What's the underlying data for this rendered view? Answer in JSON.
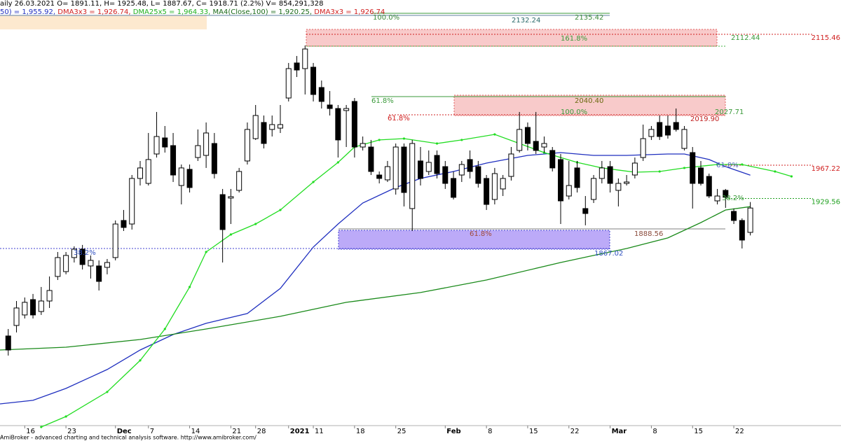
{
  "header": {
    "line1": "aily 26.03.2021 O= 1891.11, H= 1925.48, L= 1887.67, C= 1918.71 (2.2%) V= 854,291,328",
    "line2": [
      {
        "text": "50) = 1,955.92, ",
        "color": "#1f2fbf"
      },
      {
        "text": "DMA3x3 = 1,926.74, ",
        "color": "#d02020"
      },
      {
        "text": "DMA25x5 = 1,964.33, ",
        "color": "#20b020"
      },
      {
        "text": "MA4(Close,100) = 1,920.25, ",
        "color": "#1a6a1a"
      },
      {
        "text": "DMA3x3 = 1,926.74",
        "color": "#d02020"
      }
    ]
  },
  "footer": "AmiBroker - advanced charting and technical analysis software. http://www.amibroker.com/",
  "chart_data": {
    "type": "candlestick",
    "categories": [
      null,
      null,
      "16",
      null,
      null,
      null,
      null,
      "23",
      null,
      null,
      null,
      null,
      null,
      "Dec",
      null,
      null,
      null,
      "7",
      null,
      null,
      null,
      null,
      "14",
      null,
      null,
      null,
      null,
      "21",
      null,
      null,
      "28",
      null,
      null,
      null,
      "2021",
      null,
      null,
      "11",
      null,
      null,
      null,
      null,
      "18",
      null,
      null,
      null,
      null,
      "25",
      null,
      null,
      null,
      null,
      null,
      "Feb",
      null,
      null,
      null,
      null,
      "8",
      null,
      null,
      null,
      null,
      "15",
      null,
      null,
      null,
      null,
      "22",
      null,
      null,
      null,
      null,
      "Mar",
      null,
      null,
      null,
      null,
      "8",
      null,
      null,
      null,
      null,
      "15",
      null,
      null,
      null,
      null,
      "22",
      null,
      null
    ],
    "open": [
      1773.8,
      1785.7,
      1797.6,
      1815.0,
      1801.5,
      1813.4,
      1841.2,
      1846.7,
      1862.6,
      1872.1,
      1853.1,
      1853.1,
      1851.5,
      1862.6,
      1904.6,
      1900.6,
      1952.2,
      1946.6,
      1979.9,
      1998.1,
      1989.4,
      1944.2,
      1962.5,
      1975.9,
      1978.3,
      1991.8,
      1933.9,
      1930.0,
      1938.7,
      1972.0,
      1997.3,
      2015.6,
      2007.7,
      2009.2,
      2043.3,
      2083.0,
      2076.6,
      2078.2,
      2055.2,
      2035.4,
      2031.4,
      2029.1,
      2039.4,
      1987.8,
      1987.8,
      1956.1,
      1950.6,
      1940.3,
      1987.8,
      1918.1,
      1972.0,
      1960.1,
      1978.3,
      1965.6,
      1952.2,
      1956.1,
      1973.6,
      1965.6,
      1952.2,
      1928.4,
      1940.3,
      1954.5,
      1983.9,
      2010.0,
      1994.2,
      1987.8,
      1983.9,
      1973.6,
      1932.3,
      1964.1,
      1918.1,
      1928.4,
      1952.2,
      1965.6,
      1938.7,
      1946.6,
      1956.1,
      1975.9,
      1999.7,
      2015.6,
      2011.6,
      2015.6,
      1986.2,
      1981.5,
      1964.1,
      1954.5,
      1926.8,
      1938.7,
      1914.9,
      1904.6,
      1891.11
    ],
    "high": [
      1781.7,
      1813.4,
      1817.4,
      1821.4,
      1829.3,
      1841.2,
      1868.9,
      1868.9,
      1875.3,
      1876.9,
      1865.0,
      1859.4,
      1861.0,
      1904.6,
      1916.5,
      1956.1,
      1972.0,
      2003.7,
      2027.5,
      2011.6,
      2003.7,
      1968.0,
      1968.0,
      2007.7,
      2015.6,
      2003.7,
      1940.3,
      1940.3,
      1964.1,
      2015.6,
      2035.4,
      2023.5,
      2023.5,
      2035.4,
      2083.0,
      2090.9,
      2102.8,
      2083.0,
      2063.1,
      2051.2,
      2035.4,
      2035.4,
      2043.3,
      1999.7,
      1995.8,
      1960.1,
      1972.0,
      1991.8,
      1991.8,
      1995.8,
      1987.8,
      1983.9,
      1983.9,
      1972.0,
      1960.1,
      1972.0,
      1983.9,
      1972.0,
      1956.1,
      1964.1,
      1956.1,
      1987.8,
      2027.5,
      2015.6,
      2027.5,
      1999.7,
      1987.8,
      1979.9,
      1972.0,
      1972.0,
      1932.3,
      1956.1,
      1972.0,
      1972.0,
      1952.2,
      1956.1,
      1975.9,
      2013.2,
      2011.6,
      2023.5,
      2023.5,
      2031.4,
      2011.6,
      1987.8,
      1972.0,
      1957.7,
      1940.3,
      1940.3,
      1918.1,
      1907.0,
      1925.48
    ],
    "low": [
      1751.6,
      1777.8,
      1793.6,
      1793.6,
      1797.6,
      1805.5,
      1837.2,
      1843.6,
      1857.0,
      1849.1,
      1838.8,
      1825.3,
      1843.6,
      1859.4,
      1892.7,
      1894.3,
      1944.2,
      1944.2,
      1975.9,
      1981.5,
      1948.2,
      1922.8,
      1936.3,
      1972.0,
      1964.1,
      1952.2,
      1857.0,
      1900.6,
      1936.3,
      1968.0,
      1995.8,
      1986.2,
      1999.7,
      2003.7,
      2039.4,
      2067.1,
      2047.3,
      2039.4,
      2031.4,
      2023.5,
      1975.9,
      1987.8,
      1975.9,
      1983.9,
      1956.1,
      1946.6,
      1948.2,
      1933.9,
      1920.5,
      1892.7,
      1944.2,
      1956.1,
      1952.2,
      1940.3,
      1928.4,
      1948.2,
      1952.2,
      1941.9,
      1916.5,
      1922.8,
      1932.3,
      1949.8,
      1981.5,
      1983.9,
      1979.9,
      1981.5,
      1960.1,
      1900.6,
      1928.4,
      1936.3,
      1899.1,
      1924.4,
      1946.6,
      1936.3,
      1920.5,
      1944.2,
      1952.2,
      1972.0,
      1995.8,
      1995.8,
      1997.3,
      2005.3,
      1983.9,
      1918.1,
      1944.2,
      1930.0,
      1922.8,
      1918.9,
      1900.6,
      1872.9,
      1887.67
    ],
    "close": [
      1757.9,
      1805.5,
      1811.9,
      1797.6,
      1813.4,
      1825.3,
      1862.6,
      1865.0,
      1872.1,
      1854.7,
      1859.4,
      1835.6,
      1857.0,
      1900.6,
      1896.7,
      1952.2,
      1964.1,
      1973.6,
      1999.7,
      1987.8,
      1956.1,
      1964.1,
      1941.9,
      1989.4,
      2003.7,
      1957.7,
      1894.3,
      1931.6,
      1960.1,
      2007.7,
      2023.5,
      1991.8,
      2013.2,
      2013.2,
      2076.6,
      2075.0,
      2098.8,
      2047.3,
      2039.4,
      2031.4,
      1995.8,
      2031.4,
      1987.8,
      1991.8,
      1960.1,
      1952.2,
      1965.6,
      1987.8,
      1936.3,
      1991.8,
      1952.2,
      1970.4,
      1957.7,
      1946.6,
      1930.8,
      1968.0,
      1960.1,
      1946.6,
      1922.8,
      1957.7,
      1952.2,
      1979.9,
      2007.7,
      1991.8,
      1983.9,
      1991.8,
      1964.1,
      1926.8,
      1944.2,
      1941.9,
      1912.5,
      1952.2,
      1964.1,
      1946.6,
      1946.6,
      1948.2,
      1969.6,
      1997.3,
      2007.7,
      1999.7,
      2001.3,
      2007.7,
      2007.7,
      1946.6,
      1946.6,
      1932.3,
      1932.3,
      1930.8,
      1904.6,
      1882.4,
      1918.71
    ],
    "up_color": "#ffffff",
    "down_color": "#000000",
    "xlim": [
      -1,
      97.6
    ],
    "ylim": [
      1670.7,
      2154.3
    ],
    "overlays": [
      {
        "color": "#1f2fbf",
        "x": [
          -1,
          3,
          7,
          12,
          16,
          20,
          24,
          29,
          33,
          37,
          40,
          43,
          47,
          50,
          54,
          58,
          63,
          67,
          71,
          75,
          80,
          82,
          85,
          87,
          90
        ],
        "values": [
          1696.9,
          1700.9,
          1714.4,
          1735.8,
          1757.9,
          1775.4,
          1788.1,
          1799.2,
          1827.7,
          1874.5,
          1900.6,
          1924.4,
          1941.9,
          1952.2,
          1960.1,
          1969.6,
          1978.3,
          1981.5,
          1978.3,
          1978.3,
          1979.9,
          1979.9,
          1973.6,
          1965.6,
          1955.92
        ]
      },
      {
        "color": "#1a8a1a",
        "x": [
          -1,
          7,
          16,
          24,
          33,
          41,
          50,
          58,
          67,
          71,
          75,
          80,
          84,
          87,
          90
        ],
        "values": [
          1757.9,
          1761.1,
          1769.8,
          1781.7,
          1796.0,
          1811.9,
          1823.0,
          1837.2,
          1857.0,
          1865.0,
          1872.9,
          1884.8,
          1902.2,
          1916.5,
          1920.25
        ]
      },
      {
        "color": "#22dd22",
        "dots": true,
        "x": [
          4,
          7,
          12,
          16,
          19,
          22,
          24,
          27,
          30,
          33,
          37,
          40,
          42,
          45,
          48,
          52,
          55,
          59,
          62,
          65,
          69,
          72,
          76,
          79,
          82,
          86,
          89,
          93,
          95
        ],
        "values": [
          1670.7,
          1682.6,
          1710.4,
          1746.1,
          1781.7,
          1829.3,
          1868.9,
          1888.7,
          1900.6,
          1916.5,
          1948.2,
          1970.4,
          1987.8,
          1995.8,
          1997.3,
          1991.8,
          1995.8,
          2002.1,
          1991.8,
          1981.5,
          1970.4,
          1964.1,
          1959.3,
          1960.1,
          1964.1,
          1968.0,
          1968.0,
          1960.1,
          1954.5
        ]
      }
    ],
    "levels": [
      {
        "value": 2115.46,
        "color": "#d02020"
      },
      {
        "value": 1967.22,
        "color": "#d02020"
      },
      {
        "value": 1929.56,
        "color": "#20a020"
      }
    ],
    "annotations": [
      {
        "text": "100.0%",
        "color": "#3a8a3a"
      },
      {
        "text": "2132.24",
        "color": "#2a6a6a"
      },
      {
        "text": "2135.42",
        "color": "#3a8a3a"
      },
      {
        "text": "161.8%",
        "color": "#3a9a3a"
      },
      {
        "text": "2112.44",
        "color": "#3a9a3a"
      },
      {
        "text": "61.8%",
        "color": "#3a9a3a"
      },
      {
        "text": "2040.40",
        "color": "#6a6a10"
      },
      {
        "text": "100.0%",
        "color": "#3a9a3a"
      },
      {
        "text": "2027.71",
        "color": "#3a9a3a"
      },
      {
        "text": "61.8%",
        "color": "#d02020"
      },
      {
        "text": "2019.90",
        "color": "#c02020"
      },
      {
        "text": "61.8%",
        "color": "#a04a3a"
      },
      {
        "text": "1888.56",
        "color": "#8a4a3a"
      },
      {
        "text": "1867.02",
        "color": "#3050c0"
      },
      {
        "text": "38.2%",
        "color": "#3050c0"
      },
      {
        "text": "38.2%",
        "color": "#3a9a3a"
      },
      {
        "text": "61.8%",
        "color": "#5a6ac0"
      }
    ]
  }
}
